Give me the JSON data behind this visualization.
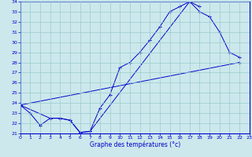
{
  "xlabel": "Graphe des températures (°c)",
  "ylim": [
    21,
    34
  ],
  "xlim": [
    0,
    23
  ],
  "bg_color": "#cce8ec",
  "line_color": "#0000cc",
  "grid_color": "#99cccc",
  "line1_x": [
    0,
    1,
    2,
    3,
    4,
    5,
    6,
    7,
    8,
    9,
    10,
    11,
    12,
    13,
    14,
    15,
    16,
    17,
    18
  ],
  "line1_y": [
    23.8,
    23.0,
    21.8,
    22.5,
    22.5,
    22.3,
    21.1,
    21.2,
    23.5,
    24.8,
    27.5,
    28.0,
    29.0,
    30.2,
    31.5,
    33.0,
    33.5,
    34.0,
    33.5
  ],
  "line2_x": [
    0,
    3,
    4,
    5,
    6,
    7,
    17,
    18,
    19,
    20,
    21,
    22
  ],
  "line2_y": [
    23.8,
    22.5,
    22.5,
    22.3,
    21.1,
    21.2,
    34.0,
    33.0,
    32.5,
    31.0,
    29.0,
    28.5
  ],
  "line3_x": [
    0,
    22
  ],
  "line3_y": [
    23.8,
    28.0
  ],
  "xticks": [
    0,
    1,
    2,
    3,
    4,
    5,
    6,
    7,
    8,
    9,
    10,
    11,
    12,
    13,
    14,
    15,
    16,
    17,
    18,
    19,
    20,
    21,
    22,
    23
  ],
  "yticks": [
    21,
    22,
    23,
    24,
    25,
    26,
    27,
    28,
    29,
    30,
    31,
    32,
    33,
    34
  ]
}
